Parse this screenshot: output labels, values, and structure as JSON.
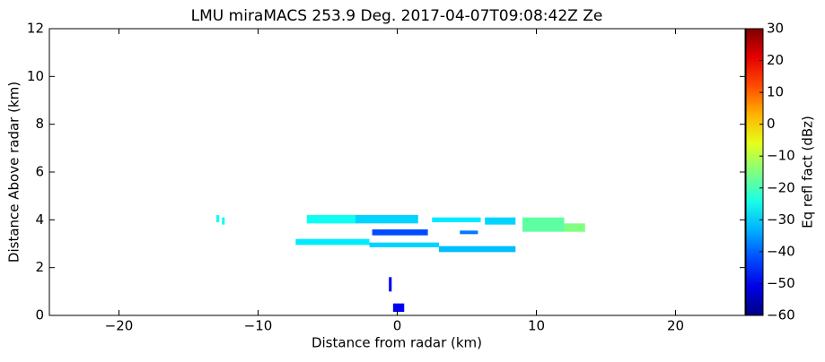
{
  "chart_data": {
    "type": "rhi",
    "title": "LMU miraMACS 253.9 Deg. 2017-04-07T09:08:42Z  Ze",
    "xlabel": "Distance from radar (km)",
    "ylabel": "Distance Above radar  (km)",
    "colorbar_label": "Eq refl fact (dBz)",
    "colormap": "jet",
    "xlim": [
      -25,
      25
    ],
    "ylim": [
      0,
      12
    ],
    "clim": [
      -60,
      30
    ],
    "xticks": [
      {
        "value": -20,
        "label": "−20"
      },
      {
        "value": -10,
        "label": "−10"
      },
      0,
      10,
      20
    ],
    "yticks": [
      0,
      2,
      4,
      6,
      8,
      10,
      12
    ],
    "cticks": [
      {
        "value": -60,
        "label": "−60"
      },
      {
        "value": -50,
        "label": "−50"
      },
      {
        "value": -40,
        "label": "−40"
      },
      {
        "value": -30,
        "label": "−30"
      },
      {
        "value": -20,
        "label": "−20"
      },
      {
        "value": -10,
        "label": "−10"
      },
      0,
      10,
      20,
      30
    ],
    "echoes": [
      {
        "x": [
          -13.0,
          -12.8
        ],
        "y": [
          3.9,
          4.2
        ],
        "value": -25
      },
      {
        "x": [
          -12.6,
          -12.4
        ],
        "y": [
          3.8,
          4.1
        ],
        "value": -25
      },
      {
        "x": [
          -6.5,
          -3.0
        ],
        "y": [
          3.85,
          4.2
        ],
        "value": -25
      },
      {
        "x": [
          -3.0,
          1.5
        ],
        "y": [
          3.85,
          4.2
        ],
        "value": -30
      },
      {
        "x": [
          2.5,
          6.0
        ],
        "y": [
          3.9,
          4.1
        ],
        "value": -28
      },
      {
        "x": [
          6.3,
          8.5
        ],
        "y": [
          3.8,
          4.1
        ],
        "value": -30
      },
      {
        "x": [
          9.0,
          12.0
        ],
        "y": [
          3.5,
          4.1
        ],
        "value": -18
      },
      {
        "x": [
          12.0,
          13.5
        ],
        "y": [
          3.5,
          3.85
        ],
        "value": -15
      },
      {
        "x": [
          -1.8,
          2.2
        ],
        "y": [
          3.35,
          3.6
        ],
        "value": -42
      },
      {
        "x": [
          4.5,
          5.8
        ],
        "y": [
          3.4,
          3.55
        ],
        "value": -38
      },
      {
        "x": [
          -7.3,
          -2.0
        ],
        "y": [
          2.95,
          3.2
        ],
        "value": -28
      },
      {
        "x": [
          -2.0,
          3.0
        ],
        "y": [
          2.85,
          3.05
        ],
        "value": -30
      },
      {
        "x": [
          3.0,
          8.5
        ],
        "y": [
          2.65,
          2.9
        ],
        "value": -32
      },
      {
        "x": [
          -0.6,
          -0.4
        ],
        "y": [
          1.0,
          1.6
        ],
        "value": -50
      },
      {
        "x": [
          -0.3,
          0.5
        ],
        "y": [
          0.15,
          0.5
        ],
        "value": -50
      }
    ]
  }
}
